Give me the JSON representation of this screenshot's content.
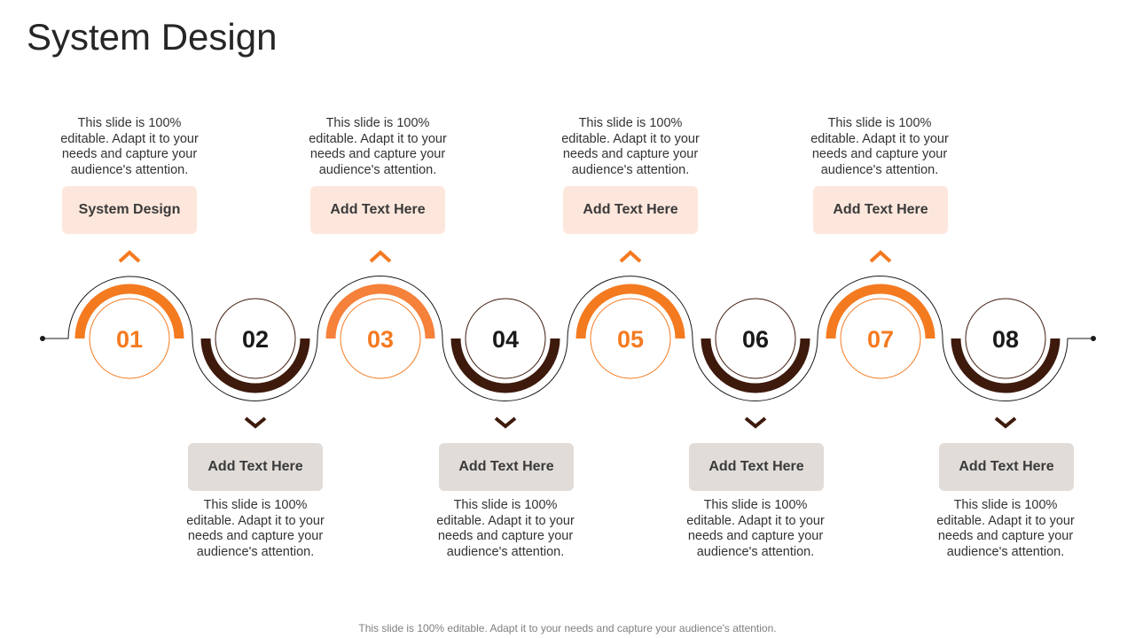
{
  "slide": {
    "title": "System Design",
    "footer": "This slide is 100% editable. Adapt it to your needs and capture your audience's attention."
  },
  "steps": [
    {
      "number": "01",
      "label": "System Design",
      "description": "This slide is 100% editable. Adapt it to your needs and capture your audience's attention.",
      "position": "top"
    },
    {
      "number": "02",
      "label": "Add Text Here",
      "description": "This slide is 100% editable. Adapt it to your needs and capture your audience's attention.",
      "position": "bottom"
    },
    {
      "number": "03",
      "label": "Add Text Here",
      "description": "This slide is 100% editable. Adapt it to your needs and capture your audience's attention.",
      "position": "top"
    },
    {
      "number": "04",
      "label": "Add Text Here",
      "description": "This slide is 100% editable. Adapt it to your needs and capture your audience's attention.",
      "position": "bottom"
    },
    {
      "number": "05",
      "label": "Add Text Here",
      "description": "This slide is 100% editable. Adapt it to your needs and capture your audience's attention.",
      "position": "top"
    },
    {
      "number": "06",
      "label": "Add Text Here",
      "description": "This slide is 100% editable. Adapt it to your needs and capture your audience's attention.",
      "position": "bottom"
    },
    {
      "number": "07",
      "label": "Add Text Here",
      "description": "This slide is 100% editable. Adapt it to your needs and capture your audience's attention.",
      "position": "top"
    },
    {
      "number": "08",
      "label": "Add Text Here",
      "description": "This slide is 100% editable. Adapt it to your needs and capture your audience's attention.",
      "position": "bottom"
    }
  ],
  "colors": {
    "accent": "#f47a20",
    "dark": "#3d1a0c",
    "top_box": "#fde7dc",
    "bottom_box": "#e1dcd8",
    "line": "#1a1a1a"
  }
}
